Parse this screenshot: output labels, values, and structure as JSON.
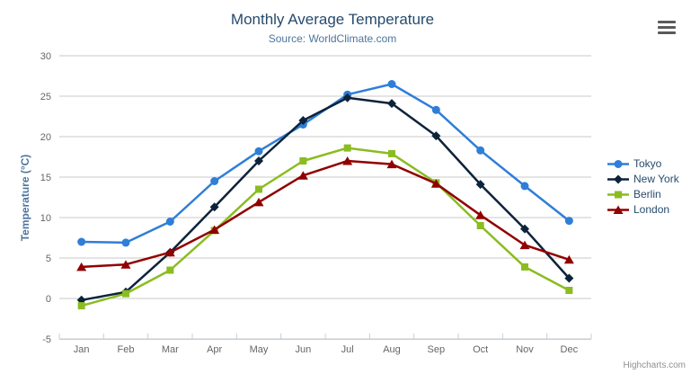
{
  "header": {
    "title": "Monthly Average Temperature",
    "subtitle": "Source: WorldClimate.com"
  },
  "credits": {
    "label": "Highcharts.com"
  },
  "export_menu": {
    "icon": "hamburger-icon"
  },
  "chart_data": {
    "type": "line",
    "title": "Monthly Average Temperature",
    "subtitle": "Source: WorldClimate.com",
    "categories": [
      "Jan",
      "Feb",
      "Mar",
      "Apr",
      "May",
      "Jun",
      "Jul",
      "Aug",
      "Sep",
      "Oct",
      "Nov",
      "Dec"
    ],
    "series": [
      {
        "name": "Tokyo",
        "color": "#2f7ed8",
        "marker": "circle",
        "values": [
          7.0,
          6.9,
          9.5,
          14.5,
          18.2,
          21.5,
          25.2,
          26.5,
          23.3,
          18.3,
          13.9,
          9.6
        ]
      },
      {
        "name": "New York",
        "color": "#0d233a",
        "marker": "diamond",
        "values": [
          -0.2,
          0.8,
          5.7,
          11.3,
          17.0,
          22.0,
          24.8,
          24.1,
          20.1,
          14.1,
          8.6,
          2.5
        ]
      },
      {
        "name": "Berlin",
        "color": "#8bbc21",
        "marker": "square",
        "values": [
          -0.9,
          0.6,
          3.5,
          8.4,
          13.5,
          17.0,
          18.6,
          17.9,
          14.3,
          9.0,
          3.9,
          1.0
        ]
      },
      {
        "name": "London",
        "color": "#910000",
        "marker": "triangle",
        "values": [
          3.9,
          4.2,
          5.7,
          8.5,
          11.9,
          15.2,
          17.0,
          16.6,
          14.2,
          10.3,
          6.6,
          4.8
        ]
      }
    ],
    "xlabel": "",
    "ylabel": "Temperature (°C)",
    "ylim": [
      -5,
      30
    ],
    "ytick_step": 5,
    "grid": true,
    "legend_position": "right"
  },
  "colors": {
    "grid_line": "#C8C8C8",
    "axis_line": "#C0D0E0",
    "tick_label": "#666666",
    "title": "#274b6d",
    "subtitle": "#4d759e",
    "axis_title": "#4d759e",
    "legend_text": "#274b6d",
    "credits_text": "#909090",
    "hamburger": "#5a5a5a"
  }
}
